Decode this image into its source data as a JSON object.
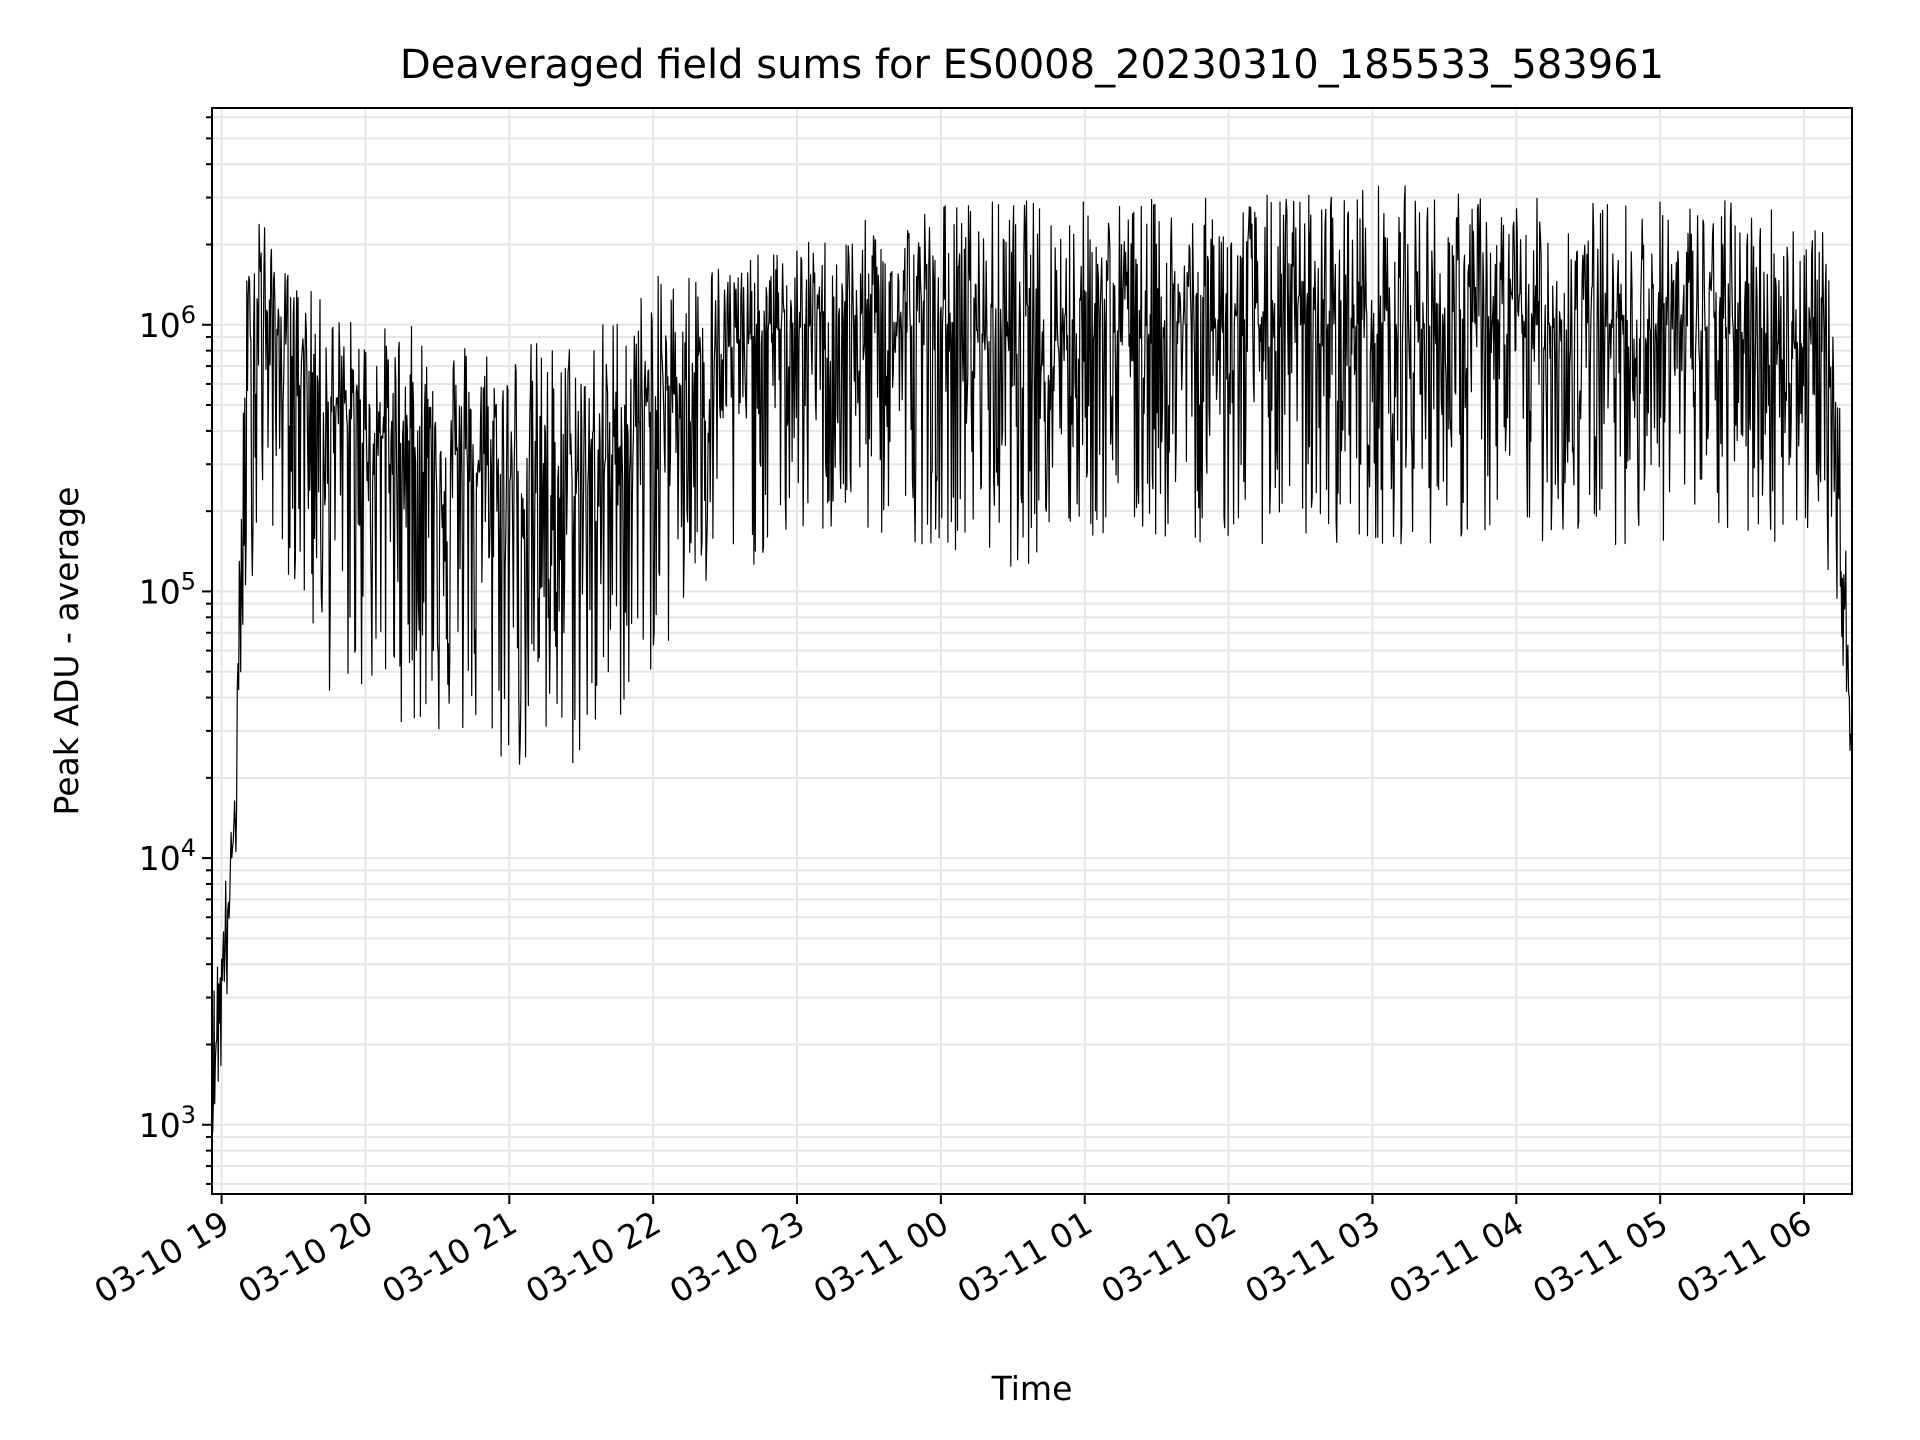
{
  "chart_data": {
    "type": "line",
    "title": "Deaveraged field sums for ES0008_20230310_185533_583961",
    "xlabel": "Time",
    "ylabel": "Peak ADU - average",
    "y_scale": "log",
    "ylim": [
      550,
      6500000
    ],
    "xlim": [
      "2023-03-10 18:56",
      "2023-03-11 06:20"
    ],
    "x_tick_labels": [
      "03-10 19",
      "03-10 20",
      "03-10 21",
      "03-10 22",
      "03-10 23",
      "03-11 00",
      "03-11 01",
      "03-11 02",
      "03-11 03",
      "03-11 04",
      "03-11 05",
      "03-11 06"
    ],
    "y_ticks": [
      {
        "base": "10",
        "exp": "3"
      },
      {
        "base": "10",
        "exp": "4"
      },
      {
        "base": "10",
        "exp": "5"
      },
      {
        "base": "10",
        "exp": "6"
      }
    ],
    "grid": true,
    "line_color": "#000000",
    "series": [
      {
        "envelope": {
          "x": [
            "2023-03-10 18:56",
            "2023-03-10 19:00",
            "2023-03-10 19:05",
            "2023-03-10 19:10",
            "2023-03-10 19:15",
            "2023-03-10 19:20",
            "2023-03-10 19:30",
            "2023-03-10 19:45",
            "2023-03-10 20:00",
            "2023-03-10 20:20",
            "2023-03-10 20:40",
            "2023-03-10 21:00",
            "2023-03-10 21:20",
            "2023-03-10 21:40",
            "2023-03-10 22:00",
            "2023-03-10 22:20",
            "2023-03-10 22:40",
            "2023-03-10 23:00",
            "2023-03-10 23:30",
            "2023-03-11 00:00",
            "2023-03-11 00:30",
            "2023-03-11 01:00",
            "2023-03-11 02:00",
            "2023-03-11 03:00",
            "2023-03-11 04:00",
            "2023-03-11 05:00",
            "2023-03-11 05:50",
            "2023-03-11 06:08",
            "2023-03-11 06:15",
            "2023-03-11 06:20"
          ],
          "low": [
            900,
            1500,
            5000,
            80000,
            150000,
            180000,
            100000,
            40000,
            40000,
            30000,
            25000,
            20000,
            18000,
            25000,
            50000,
            80000,
            120000,
            150000,
            150000,
            150000,
            120000,
            150000,
            150000,
            150000,
            150000,
            150000,
            150000,
            150000,
            70000,
            20000
          ],
          "mid": [
            1500,
            3500,
            12000,
            400000,
            1500000,
            1000000,
            800000,
            500000,
            400000,
            350000,
            300000,
            250000,
            220000,
            300000,
            500000,
            700000,
            900000,
            1000000,
            1000000,
            1000000,
            900000,
            1000000,
            1000000,
            1000000,
            1000000,
            1000000,
            900000,
            800000,
            200000,
            25000
          ],
          "high": [
            3000,
            7000,
            15000,
            1500000,
            4000000,
            2000000,
            1500000,
            1200000,
            1000000,
            1000000,
            950000,
            900000,
            900000,
            1100000,
            1500000,
            1800000,
            1800000,
            2000000,
            2500000,
            3000000,
            3000000,
            3000000,
            3000000,
            3500000,
            3000000,
            3000000,
            3000000,
            2500000,
            500000,
            40000
          ]
        }
      }
    ]
  }
}
